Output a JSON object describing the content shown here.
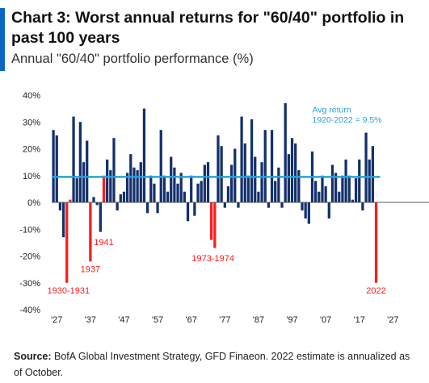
{
  "header": {
    "title": "Chart 3: Worst annual returns for \"60/40\" portfolio in past 100 years",
    "subtitle": "Annual \"60/40\" portfolio performance (%)"
  },
  "footer": {
    "source_label": "Source:",
    "source_text": " BofA Global Investment Strategy, GFD Finaeon. 2022 estimate is annualized as of October."
  },
  "colors": {
    "positive": "#13306b",
    "negative": "#ff1a1a",
    "average": "#2aa0d8",
    "accent": "#0a66c2"
  },
  "chart_data": {
    "type": "bar",
    "ylim": [
      -40,
      40
    ],
    "yticks": [
      -40,
      -30,
      -20,
      -10,
      0,
      10,
      20,
      30,
      40
    ],
    "ytick_labels": [
      "-40%",
      "-30%",
      "-20%",
      "-10%",
      "0%",
      "10%",
      "20%",
      "30%",
      "40%"
    ],
    "xticks": [
      1927,
      1937,
      1947,
      1957,
      1967,
      1977,
      1987,
      1997,
      2007,
      2017,
      2027
    ],
    "xtick_labels": [
      "'27",
      "'37",
      "'47",
      "'57",
      "'67",
      "'77",
      "'87",
      "'97",
      "'07",
      "'17",
      "'27"
    ],
    "years": [
      1926,
      1927,
      1928,
      1929,
      1930,
      1931,
      1932,
      1933,
      1934,
      1935,
      1936,
      1937,
      1938,
      1939,
      1940,
      1941,
      1942,
      1943,
      1944,
      1945,
      1946,
      1947,
      1948,
      1949,
      1950,
      1951,
      1952,
      1953,
      1954,
      1955,
      1956,
      1957,
      1958,
      1959,
      1960,
      1961,
      1962,
      1963,
      1964,
      1965,
      1966,
      1967,
      1968,
      1969,
      1970,
      1971,
      1972,
      1973,
      1974,
      1975,
      1976,
      1977,
      1978,
      1979,
      1980,
      1981,
      1982,
      1983,
      1984,
      1985,
      1986,
      1987,
      1988,
      1989,
      1990,
      1991,
      1992,
      1993,
      1994,
      1995,
      1996,
      1997,
      1998,
      1999,
      2000,
      2001,
      2002,
      2003,
      2004,
      2005,
      2006,
      2007,
      2008,
      2009,
      2010,
      2011,
      2012,
      2013,
      2014,
      2015,
      2016,
      2017,
      2018,
      2019,
      2020,
      2021,
      2022
    ],
    "values": [
      27,
      25,
      -3,
      -13,
      -30,
      1,
      32,
      9,
      30,
      15,
      23,
      -22,
      2,
      -1,
      -11,
      10,
      16,
      12,
      24,
      -3,
      3,
      4,
      11,
      18,
      13,
      12,
      15,
      35,
      -4,
      10,
      7,
      -4,
      27,
      10,
      4,
      17,
      13,
      7,
      11,
      4,
      -7,
      10,
      -5,
      7,
      8,
      14,
      15,
      -14,
      -17,
      25,
      21,
      -2,
      6,
      14,
      20,
      -2,
      32,
      22,
      10,
      31,
      17,
      4,
      15,
      27,
      -2,
      27,
      8,
      13,
      -2,
      37,
      18,
      24,
      22,
      12,
      -3,
      -6,
      -8,
      19,
      8,
      4,
      10,
      6,
      -6,
      14,
      11,
      4,
      10,
      16,
      10,
      1,
      9,
      16,
      -3,
      26,
      16,
      21,
      -30
    ],
    "highlighted_years": [
      1930,
      1931,
      1937,
      1941,
      1973,
      1974,
      2022
    ],
    "average": {
      "value": 9.5,
      "label_line1": "Avg return",
      "label_line2": "1920-2022 = 9.5%"
    },
    "annotations": [
      {
        "text": "1930-1931",
        "year": 1930.5,
        "y": -34
      },
      {
        "text": "1937",
        "year": 1937,
        "y": -26
      },
      {
        "text": "1941",
        "year": 1941,
        "y": -16
      },
      {
        "text": "1973-1974",
        "year": 1973.5,
        "y": -22
      },
      {
        "text": "2022",
        "year": 2022,
        "y": -34
      }
    ]
  }
}
